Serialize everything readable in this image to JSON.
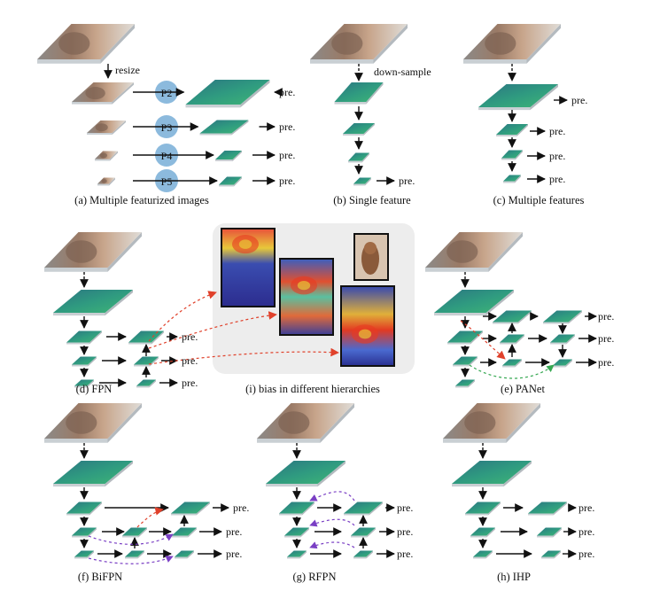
{
  "colors": {
    "feature_dark": "#2d7f82",
    "feature_light": "#38b07a",
    "feature_edge": "#c9cfd3",
    "photo_dark": "#7d6253",
    "photo_light": "#d8d3cc",
    "circle": "#7fb3d9",
    "arrow": "#111111",
    "red_dashed": "#e0412b",
    "green_dashed": "#36a852",
    "purple_dashed": "#7a3fc4",
    "panel_bg": "#ededed",
    "heatmap_blue": "#2b2d9a",
    "heatmap_red": "#e83b22",
    "heatmap_yellow": "#e8d83a"
  },
  "labels": {
    "resize": "resize",
    "down_sample": "down-sample",
    "pred": "pre.",
    "p2": "P2",
    "p3": "P3",
    "p4": "P4",
    "p5": "P5"
  },
  "captions": {
    "a": "(a) Multiple featurized images",
    "b": "(b) Single feature",
    "c": "(c) Multiple features",
    "d": "(d) FPN",
    "i": "(i) bias in different hierarchies",
    "e": "(e) PANet",
    "f": "(f) BiFPN",
    "g": "(g) RFPN",
    "h": "(h)  IHP"
  }
}
